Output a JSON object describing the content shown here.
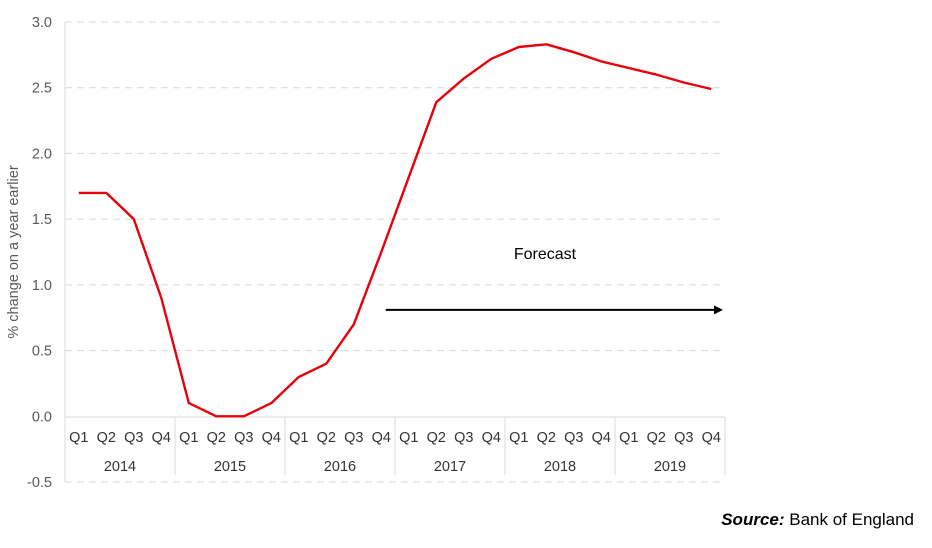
{
  "chart_data": {
    "type": "line",
    "ylabel": "% change on a year earlier",
    "ylim": [
      -0.5,
      3.0
    ],
    "yticks": [
      -0.5,
      0.0,
      0.5,
      1.0,
      1.5,
      2.0,
      2.5,
      3.0
    ],
    "grid": true,
    "quarters": [
      "Q1",
      "Q2",
      "Q3",
      "Q4",
      "Q1",
      "Q2",
      "Q3",
      "Q4",
      "Q1",
      "Q2",
      "Q3",
      "Q4",
      "Q1",
      "Q2",
      "Q3",
      "Q4",
      "Q1",
      "Q2",
      "Q3",
      "Q4",
      "Q1",
      "Q2",
      "Q3",
      "Q4"
    ],
    "years": [
      "2014",
      "2015",
      "2016",
      "2017",
      "2018",
      "2019"
    ],
    "series": [
      {
        "color": "#e8000b",
        "values": [
          1.7,
          1.7,
          1.5,
          0.9,
          0.1,
          0.0,
          0.0,
          0.1,
          0.3,
          0.4,
          0.7,
          1.25,
          1.82,
          2.39,
          2.57,
          2.72,
          2.81,
          2.83,
          2.77,
          2.7,
          2.65,
          2.6,
          2.54,
          2.49
        ]
      }
    ],
    "annotation": {
      "text": "Forecast",
      "arrow_from_index": 11.5,
      "arrow_to_index": 23.5,
      "arrow_y": 0.81
    }
  },
  "source": {
    "label": "Source:",
    "text": " Bank of England"
  }
}
